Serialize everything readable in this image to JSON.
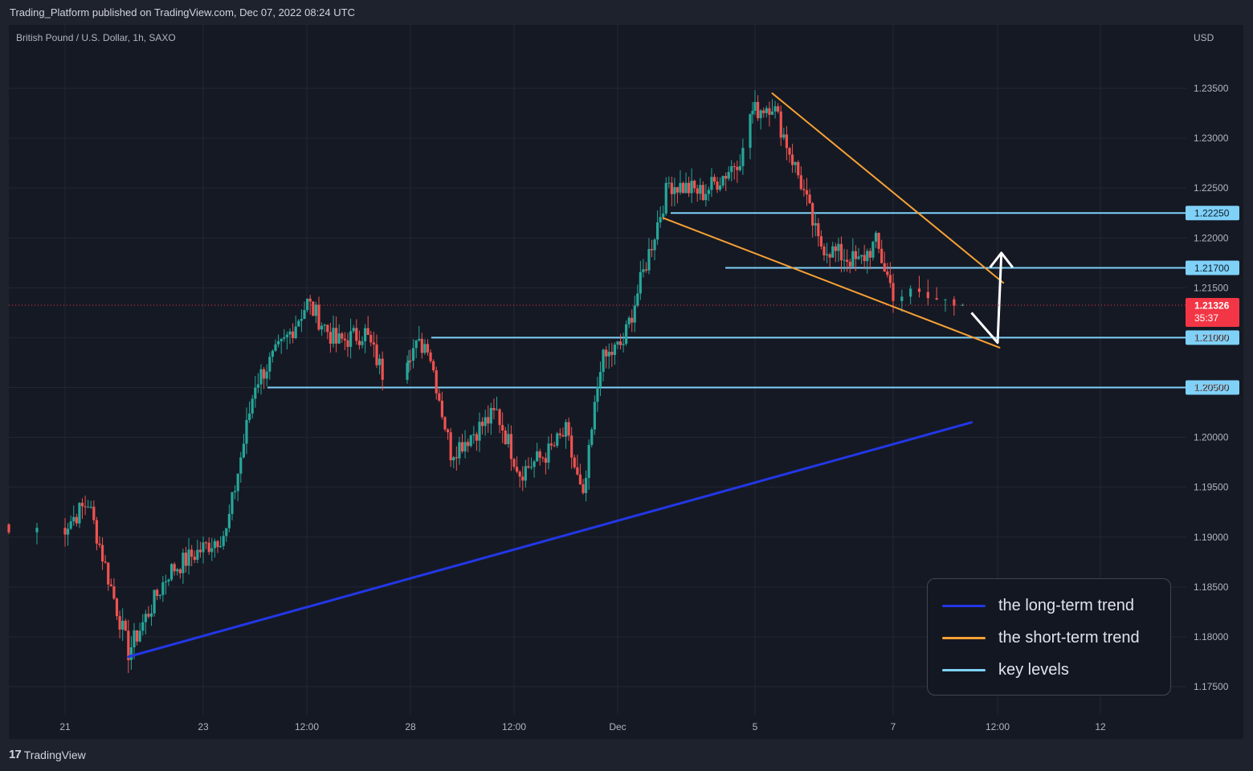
{
  "header": {
    "published_by": "Trading_Platform published on TradingView.com, Dec 07, 2022 08:24 UTC"
  },
  "symbol": {
    "title": "British Pound / U.S. Dollar, 1h, SAXO",
    "currency": "USD"
  },
  "footer": {
    "brand": "TradingView",
    "logo": "17"
  },
  "colors": {
    "background": "#151924",
    "up": "#26a69a",
    "down": "#ef5350",
    "long_term": "#2337e6",
    "short_term": "#f7a134",
    "key_level": "#7fd1f8",
    "price_badge": "#f23645"
  },
  "legend": {
    "items": [
      {
        "label": "the long-term trend",
        "color": "#2337e6"
      },
      {
        "label": "the short-term trend",
        "color": "#f7a134"
      },
      {
        "label": "key levels",
        "color": "#7fd1f8"
      }
    ]
  },
  "chart_data": {
    "type": "candlestick",
    "title": "British Pound / U.S. Dollar, 1h, SAXO",
    "ylabel": "USD",
    "ylim": [
      1.173,
      1.2375
    ],
    "y_ticks": [
      "1.17500",
      "1.18000",
      "1.18500",
      "1.19000",
      "1.19500",
      "1.20000",
      "1.20500",
      "1.21000",
      "1.21500",
      "1.22000",
      "1.22500",
      "1.23000",
      "1.23500"
    ],
    "x_ticks": [
      "21",
      "23",
      "12:00",
      "28",
      "12:00",
      "Dec",
      "5",
      "7",
      "12:00",
      "12"
    ],
    "current_price": {
      "value": "1.21326",
      "countdown": "35:37"
    },
    "key_levels": [
      {
        "value": 1.2225,
        "label": "1.22250"
      },
      {
        "value": 1.217,
        "label": "1.21700"
      },
      {
        "value": 1.21,
        "label": "1.21000"
      },
      {
        "value": 1.205,
        "label": "1.20500"
      }
    ],
    "anchors": [
      {
        "x": "Nov 20 22:00",
        "close": 1.1905
      },
      {
        "x": "Nov 21 08:00",
        "close": 1.1935
      },
      {
        "x": "Nov 21 22:00",
        "close": 1.1785
      },
      {
        "x": "Nov 22 12:00",
        "close": 1.1865
      },
      {
        "x": "Nov 22 22:00",
        "close": 1.1885
      },
      {
        "x": "Nov 23 08:00",
        "close": 1.1905
      },
      {
        "x": "Nov 23 18:00",
        "close": 1.2055
      },
      {
        "x": "Nov 24 04:00",
        "close": 1.2095
      },
      {
        "x": "Nov 24 12:00",
        "close": 1.2135
      },
      {
        "x": "Nov 24 22:00",
        "close": 1.2095
      },
      {
        "x": "Nov 25 08:00",
        "close": 1.2105
      },
      {
        "x": "Nov 25 14:00",
        "close": 1.2065
      },
      {
        "x": "Nov 27 22:00",
        "close": 1.2085
      },
      {
        "x": "Nov 28 06:00",
        "close": 1.2095
      },
      {
        "x": "Nov 28 14:00",
        "close": 1.1985
      },
      {
        "x": "Nov 28 22:00",
        "close": 1.2005
      },
      {
        "x": "Nov 29 06:00",
        "close": 1.2025
      },
      {
        "x": "Nov 29 14:00",
        "close": 1.1965
      },
      {
        "x": "Nov 30 00:00",
        "close": 1.1985
      },
      {
        "x": "Nov 30 06:00",
        "close": 1.2005
      },
      {
        "x": "Nov 30 12:00",
        "close": 1.1935
      },
      {
        "x": "Nov 30 18:00",
        "close": 1.2075
      },
      {
        "x": "Dec 1 02:00",
        "close": 1.2095
      },
      {
        "x": "Dec 1 12:00",
        "close": 1.2195
      },
      {
        "x": "Dec 1 18:00",
        "close": 1.2255
      },
      {
        "x": "Dec 2 06:00",
        "close": 1.2245
      },
      {
        "x": "Dec 2 14:00",
        "close": 1.2265
      },
      {
        "x": "Dec 2 20:00",
        "close": 1.2285
      },
      {
        "x": "Dec 4 22:00",
        "close": 1.2325
      },
      {
        "x": "Dec 5 06:00",
        "close": 1.2335
      },
      {
        "x": "Dec 5 16:00",
        "close": 1.2255
      },
      {
        "x": "Dec 5 22:00",
        "close": 1.2195
      },
      {
        "x": "Dec 6 04:00",
        "close": 1.2185
      },
      {
        "x": "Dec 6 12:00",
        "close": 1.2175
      },
      {
        "x": "Dec 6 18:00",
        "close": 1.2195
      },
      {
        "x": "Dec 7 00:00",
        "close": 1.2145
      },
      {
        "x": "Dec 7 08:00",
        "close": 1.2133
      }
    ],
    "trendlines": [
      {
        "name": "the long-term trend",
        "from": {
          "x": "Nov 21 22:00",
          "y": 1.178
        },
        "to": {
          "x": "Dec 7 09:00",
          "y": 1.2015
        }
      },
      {
        "name": "the short-term trend",
        "from": {
          "x": "Dec 5 06:00",
          "y": 1.2345
        },
        "to": {
          "x": "Dec 7 18:00",
          "y": 1.2155
        }
      },
      {
        "name": "the short-term trend",
        "from": {
          "x": "Dec 1 16:00",
          "y": 1.222
        },
        "to": {
          "x": "Dec 7 14:00",
          "y": 1.209
        }
      }
    ],
    "projection": {
      "from": {
        "x": "Dec 7 09:00",
        "y": 1.2125
      },
      "via": {
        "x": "Dec 7 12:00",
        "y": 1.2095
      },
      "to": {
        "x": "Dec 7 16:00",
        "y": 1.2185
      }
    }
  }
}
